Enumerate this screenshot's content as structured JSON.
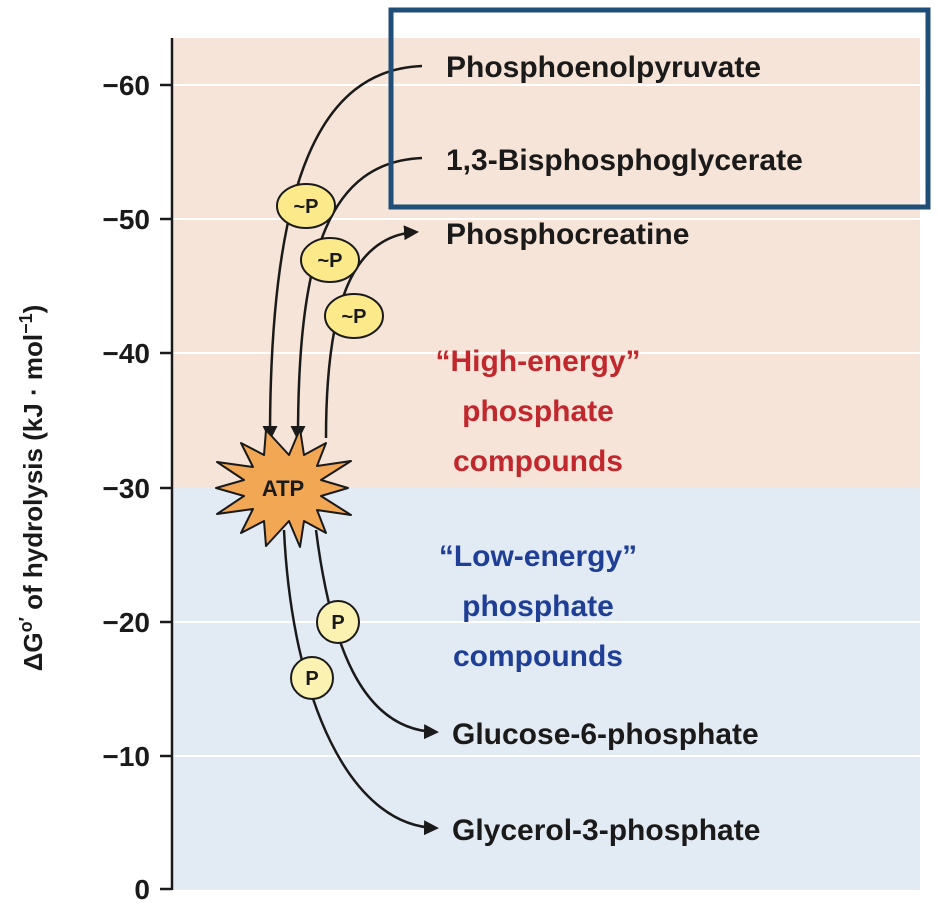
{
  "axis": {
    "label_main": "ΔG",
    "label_super": "o′",
    "label_rest": " of hydrolysis (kJ · mol",
    "label_unit_exp": "−1",
    "label_close": ")",
    "ticks": [
      "−60",
      "−50",
      "−40",
      "−30",
      "−20",
      "−10",
      "0"
    ]
  },
  "compounds": {
    "pep": "Phosphoenolpyruvate",
    "bpg": "1,3-Bisphosphoglycerate",
    "pcr": "Phosphocreatine",
    "g6p": "Glucose-6-phosphate",
    "g3p": "Glycerol-3-phosphate"
  },
  "regions": {
    "high": [
      "“High-energy”",
      "phosphate",
      "compounds"
    ],
    "low": [
      "“Low-energy”",
      "phosphate",
      "compounds"
    ]
  },
  "center": {
    "atp": "ATP"
  },
  "badges": {
    "high_energy": "~P",
    "low_energy": "P"
  },
  "colors": {
    "high_region_bg": "#f6e4d8",
    "low_region_bg": "#e2ebf4",
    "high_text": "#c0282d",
    "low_text": "#1f3f97",
    "badge_fill": "#fbe98a",
    "atp_fill": "#f2a755",
    "highlight_box": "#1f4e79"
  }
}
